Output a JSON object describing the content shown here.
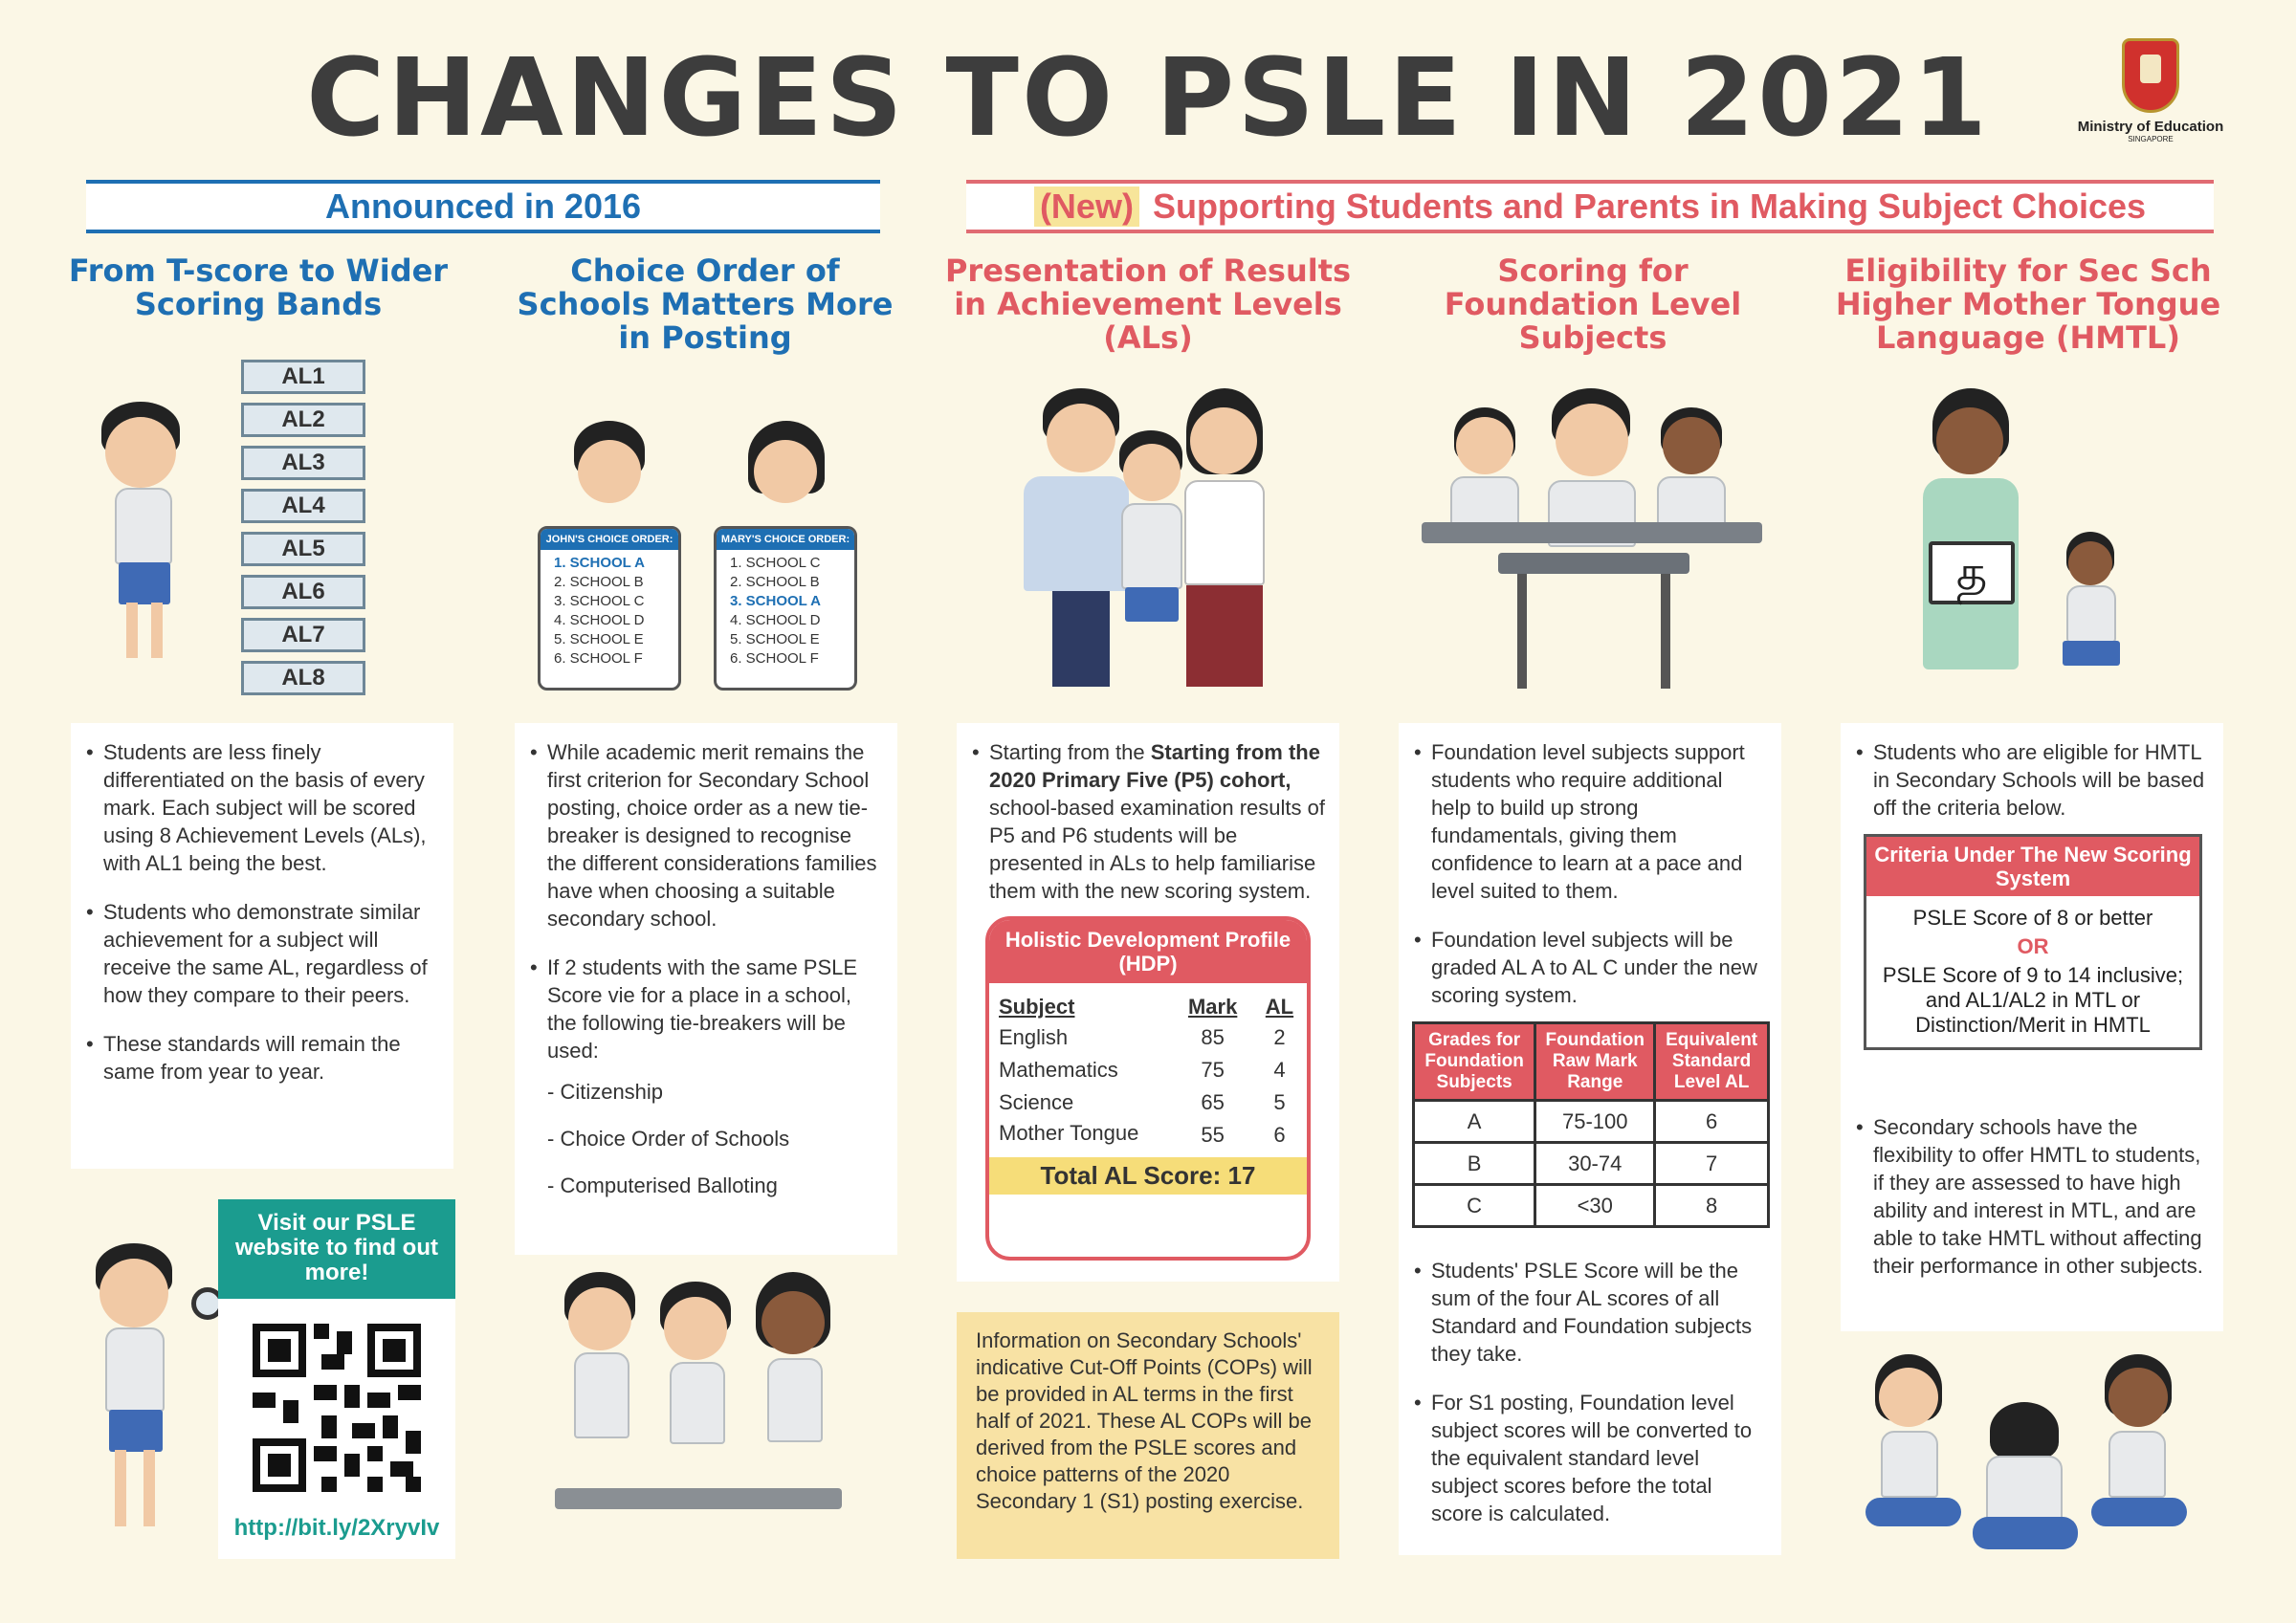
{
  "title": "CHANGES TO PSLE IN 2021",
  "logo": {
    "org": "Ministry of Education",
    "country": "SINGAPORE"
  },
  "banners": {
    "announced": "Announced in 2016",
    "new_tag": "(New)",
    "new_text": "Supporting Students and Parents in Making Subject Choices"
  },
  "columns": {
    "c1": {
      "heading": "From T-score to Wider Scoring Bands",
      "al_levels": [
        "AL1",
        "AL2",
        "AL3",
        "AL4",
        "AL5",
        "AL6",
        "AL7",
        "AL8"
      ],
      "bullets": [
        "Students are less finely differentiated on the basis of every mark. Each subject will be scored using 8 Achievement Levels (ALs), with AL1 being the best.",
        "Students who demonstrate similar achievement for a subject will receive the same AL, regardless of how they compare to their peers.",
        "These standards will remain the same from year to year."
      ]
    },
    "c2": {
      "heading": "Choice Order of Schools Matters More in Posting",
      "john": {
        "title": "JOHN'S CHOICE ORDER:",
        "items": [
          "1. SCHOOL A",
          "2. SCHOOL B",
          "3. SCHOOL C",
          "4. SCHOOL D",
          "5. SCHOOL E",
          "6. SCHOOL F"
        ]
      },
      "mary": {
        "title": "MARY'S CHOICE ORDER:",
        "items": [
          "1. SCHOOL C",
          "2. SCHOOL B",
          "3. SCHOOL A",
          "4. SCHOOL D",
          "5. SCHOOL E",
          "6. SCHOOL F"
        ]
      },
      "bullets": [
        "While academic merit remains the first criterion for Secondary School posting, choice order as a new tie-breaker is designed to recognise the different considerations families have when choosing a suitable secondary school.",
        "If 2 students with the same PSLE Score vie for a place in a school, the following tie-breakers will be used:"
      ],
      "tiebreakers": [
        "- Citizenship",
        "- Choice Order of Schools",
        "- Computerised Balloting"
      ]
    },
    "c3": {
      "heading": "Presentation of Results in Achievement Levels (ALs)",
      "bullet_bold": "Starting from the 2020 Primary Five (P5) cohort,",
      "bullet_pre": "Starting from the ",
      "bullet_rest": " school-based examination results of P5 and P6 students will be presented in ALs to help familiarise them with the new scoring system.",
      "hdp": {
        "title": "Holistic Development Profile (HDP)",
        "headers": [
          "Subject",
          "Mark",
          "AL"
        ],
        "rows": [
          [
            "English",
            "85",
            "2"
          ],
          [
            "Mathematics",
            "75",
            "4"
          ],
          [
            "Science",
            "65",
            "5"
          ],
          [
            "Mother Tongue",
            "55",
            "6"
          ]
        ],
        "total": "Total AL Score: 17"
      },
      "note": "Information on Secondary Schools' indicative Cut-Off Points (COPs) will be provided in AL terms in the first half of 2021. These AL COPs will be derived from the PSLE scores and choice patterns of the 2020 Secondary 1 (S1) posting exercise."
    },
    "c4": {
      "heading": "Scoring for Foundation Level Subjects",
      "bullets_top": [
        "Foundation level subjects support students who require additional help to build up strong fundamentals, giving them confidence to learn at a pace and level suited to them.",
        "Foundation level subjects will be graded AL A to AL C under the new scoring system."
      ],
      "table": {
        "headers": [
          "Grades for Foundation Subjects",
          "Foundation Raw Mark Range",
          "Equivalent Standard Level AL"
        ],
        "rows": [
          [
            "A",
            "75-100",
            "6"
          ],
          [
            "B",
            "30-74",
            "7"
          ],
          [
            "C",
            "<30",
            "8"
          ]
        ]
      },
      "bullets_bottom": [
        "Students' PSLE Score will be the sum of the four AL scores of all Standard and Foundation subjects they take.",
        "For S1 posting, Foundation level subject scores will be converted to the equivalent standard level subject scores before the total score is calculated."
      ]
    },
    "c5": {
      "heading": "Eligibility for Sec Sch Higher Mother Tongue Language (HMTL)",
      "board_char": "த",
      "bullets_top": [
        "Students who are eligible for HMTL in Secondary Schools will be based off the criteria below."
      ],
      "criteria": {
        "title": "Criteria Under The New Scoring System",
        "line1": "PSLE Score of 8 or better",
        "or": "OR",
        "line2": "PSLE Score of 9 to 14 inclusive; and AL1/AL2 in MTL or Distinction/Merit in HMTL"
      },
      "bullets_bottom": [
        "Secondary schools have the flexibility to offer HMTL to students, if they are assessed to have high ability and interest in MTL, and are able to take HMTL without affecting their performance in other subjects."
      ]
    }
  },
  "website": {
    "prompt": "Visit our PSLE website to find out more!",
    "url": "http://bit.ly/2XryvIv"
  }
}
